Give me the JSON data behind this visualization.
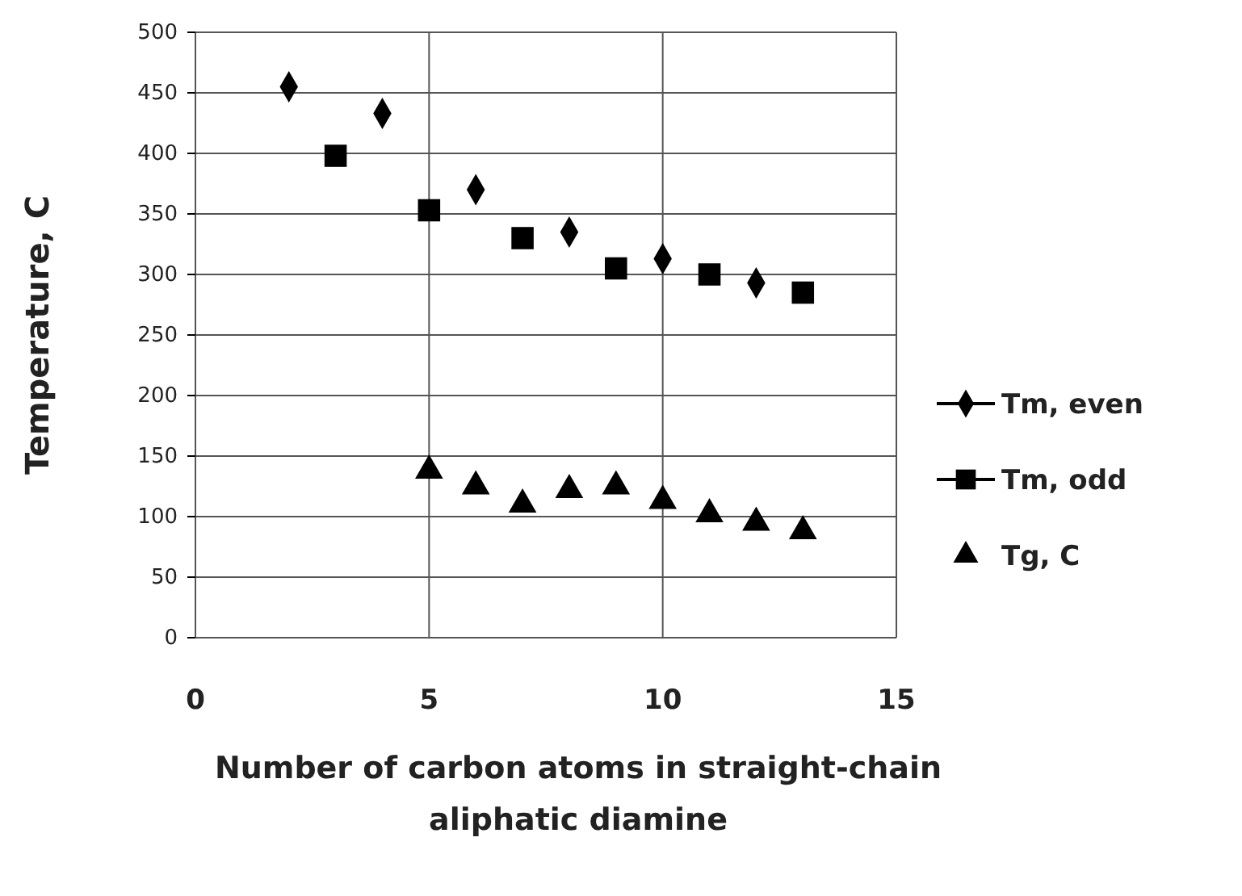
{
  "chart_data": {
    "type": "scatter",
    "xlabel": "Number of carbon atoms in straight-chain aliphatic diamine",
    "ylabel": "Temperature, C",
    "xlim": [
      0,
      15
    ],
    "xticks": [
      0,
      5,
      10,
      15
    ],
    "ylim": [
      0,
      500
    ],
    "yticks": [
      0,
      50,
      100,
      150,
      200,
      250,
      300,
      350,
      400,
      450,
      500
    ],
    "grid": true,
    "legend": "right",
    "series": [
      {
        "name": "Tm, even",
        "color": "#000000",
        "marker": "diamond",
        "x": [
          2,
          4,
          6,
          8,
          10,
          12
        ],
        "values": [
          455,
          433,
          370,
          335,
          313,
          293
        ]
      },
      {
        "name": "Tm, odd",
        "color": "#000000",
        "marker": "square",
        "x": [
          3,
          5,
          7,
          9,
          11,
          13
        ],
        "values": [
          398,
          353,
          330,
          305,
          300,
          285
        ]
      },
      {
        "name": "Tg, C",
        "color": "#000000",
        "marker": "triangle",
        "x": [
          5,
          6,
          7,
          8,
          9,
          10,
          11,
          12,
          13
        ],
        "values": [
          138,
          125,
          110,
          122,
          125,
          113,
          102,
          95,
          88
        ]
      }
    ]
  }
}
